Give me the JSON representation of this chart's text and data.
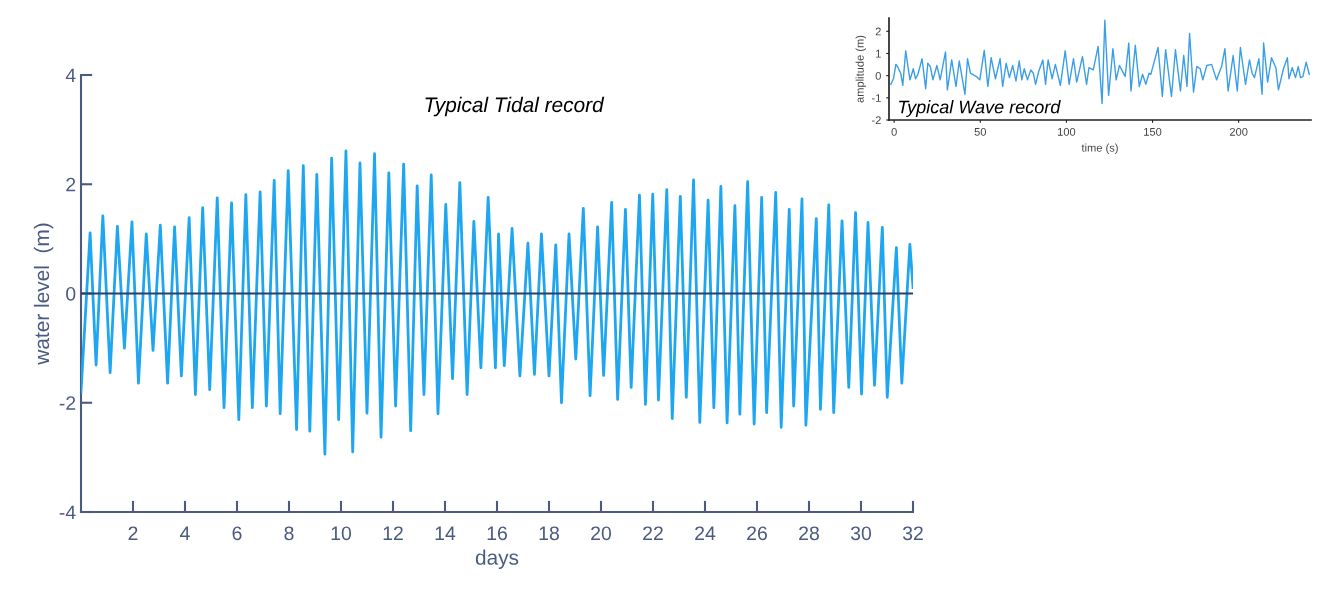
{
  "chart_data": [
    {
      "type": "line",
      "title": "Typical Tidal record",
      "xlabel": "days",
      "ylabel": "water level  (m)",
      "color": "#1ea7f0",
      "x": [
        0,
        0.35,
        0.58,
        0.84,
        1.12,
        1.4,
        1.67,
        1.96,
        2.21,
        2.51,
        2.77,
        3.05,
        3.33,
        3.6,
        3.86,
        4.16,
        4.4,
        4.68,
        4.95,
        5.24,
        5.5,
        5.79,
        6.07,
        6.34,
        6.59,
        6.89,
        7.13,
        7.43,
        7.66,
        7.97,
        8.29,
        8.55,
        8.8,
        9.07,
        9.38,
        9.64,
        9.91,
        10.19,
        10.45,
        10.73,
        11.0,
        11.29,
        11.54,
        11.84,
        12.1,
        12.41,
        12.68,
        12.93,
        13.19,
        13.47,
        13.73,
        14.03,
        14.29,
        14.57,
        14.85,
        15.11,
        15.38,
        15.66,
        15.94,
        16.06,
        16.28,
        16.58,
        16.88,
        17.19,
        17.44,
        17.71,
        18.0,
        18.26,
        18.48,
        18.77,
        19.03,
        19.32,
        19.58,
        19.87,
        20.1,
        20.41,
        20.64,
        20.94,
        21.16,
        21.48,
        21.71,
        21.99,
        22.21,
        22.53,
        22.74,
        23.05,
        23.28,
        23.56,
        23.8,
        24.12,
        24.34,
        24.61,
        24.85,
        25.15,
        25.34,
        25.64,
        25.89,
        26.18,
        26.37,
        26.72,
        26.93,
        27.24,
        27.41,
        27.73,
        27.88,
        28.28,
        28.44,
        28.76,
        28.95,
        29.27,
        29.53,
        29.79,
        30.02,
        30.27,
        30.52,
        30.82,
        31.01,
        31.36,
        31.57,
        31.88,
        32.0
      ],
      "values": [
        -1.8,
        1.11,
        -1.31,
        1.42,
        -1.45,
        1.23,
        -1.0,
        1.31,
        -1.64,
        1.09,
        -1.04,
        1.25,
        -1.64,
        1.22,
        -1.51,
        1.39,
        -1.85,
        1.57,
        -1.76,
        1.75,
        -2.09,
        1.66,
        -2.31,
        1.81,
        -2.09,
        1.86,
        -2.06,
        2.07,
        -2.2,
        2.25,
        -2.49,
        2.34,
        -2.52,
        2.18,
        -2.94,
        2.48,
        -2.31,
        2.61,
        -2.9,
        2.39,
        -2.19,
        2.56,
        -2.63,
        2.21,
        -2.06,
        2.37,
        -2.51,
        1.97,
        -1.85,
        2.17,
        -2.2,
        1.63,
        -1.56,
        2.03,
        -1.85,
        1.32,
        -1.36,
        1.76,
        -1.36,
        1.09,
        -1.32,
        1.19,
        -1.51,
        0.92,
        -1.48,
        1.09,
        -1.51,
        0.89,
        -2.0,
        1.09,
        -1.2,
        1.56,
        -1.87,
        1.22,
        -1.5,
        1.67,
        -1.94,
        1.54,
        -1.72,
        1.8,
        -2.03,
        1.82,
        -1.95,
        1.9,
        -2.29,
        1.78,
        -1.9,
        2.08,
        -2.36,
        1.71,
        -2.09,
        1.96,
        -2.37,
        1.61,
        -2.21,
        2.05,
        -2.39,
        1.76,
        -2.18,
        1.85,
        -2.45,
        1.54,
        -2.06,
        1.73,
        -2.41,
        1.37,
        -2.12,
        1.62,
        -2.18,
        1.33,
        -1.72,
        1.48,
        -1.84,
        1.3,
        -1.68,
        1.21,
        -1.9,
        0.84,
        -1.64,
        0.9,
        0.11
      ],
      "xlim": [
        0,
        32
      ],
      "xticks": [
        2,
        4,
        6,
        8,
        10,
        12,
        14,
        16,
        18,
        20,
        22,
        24,
        26,
        28,
        30,
        32
      ],
      "ylim": [
        -4,
        4
      ],
      "yticks": [
        -4,
        -2,
        0,
        2,
        4
      ],
      "ref_lines": [
        {
          "axis": "y",
          "value": 0,
          "color": "#2b3f6b"
        }
      ]
    },
    {
      "type": "line",
      "xlabel": "time (s)",
      "ylabel": "amplitude (m)",
      "color": "#3a9ee6",
      "annotations": [
        "Typical Wave record"
      ],
      "x": [
        -1.9,
        -0.4,
        1.0,
        2.3,
        3.8,
        5.0,
        6.7,
        8.2,
        9.2,
        11.1,
        12.4,
        13.8,
        16.2,
        18.3,
        19.5,
        21.0,
        22.5,
        24.8,
        26.7,
        29.8,
        30.9,
        33.4,
        35.9,
        37.8,
        41.1,
        42.6,
        44.3,
        47.8,
        49.7,
        52.3,
        54.4,
        56.3,
        58.8,
        61.5,
        63.0,
        65.0,
        66.9,
        68.8,
        70.7,
        72.6,
        74.1,
        75.5,
        77.4,
        79.3,
        80.8,
        82.1,
        84.0,
        86.3,
        87.9,
        89.4,
        91.7,
        93.6,
        96.5,
        99.3,
        101.6,
        104.1,
        106.0,
        109.3,
        111.7,
        113.1,
        115.6,
        118.4,
        120.7,
        122.3,
        124.5,
        127.0,
        128.9,
        130.8,
        132.8,
        134.1,
        136.2,
        137.5,
        140.0,
        142.3,
        144.2,
        146.1,
        148.0,
        149.0,
        153.2,
        155.7,
        157.6,
        161.0,
        163.3,
        166.2,
        168.1,
        170.0,
        171.5,
        173.8,
        175.7,
        177.7,
        179.2,
        181.5,
        184.3,
        187.2,
        190.1,
        192.0,
        193.9,
        196.8,
        199.2,
        201.0,
        204.0,
        206.3,
        207.8,
        209.2,
        211.7,
        213.6,
        214.5,
        216.8,
        219.1,
        221.6,
        223.1,
        226.0,
        228.3,
        229.2,
        231.1,
        233.0,
        234.6,
        235.9,
        237.3,
        239.2,
        241.0
      ],
      "values": [
        -0.39,
        -0.14,
        0.51,
        0.36,
        0.11,
        -0.44,
        1.12,
        0.31,
        -0.19,
        0.31,
        -0.14,
        0.06,
        0.76,
        -0.59,
        0.56,
        0.41,
        -0.19,
        0.46,
        -0.19,
        1.07,
        -0.64,
        0.71,
        -0.49,
        0.66,
        -0.84,
        0.76,
        0.11,
        -0.04,
        -0.19,
        1.14,
        -0.49,
        0.81,
        -0.14,
        0.76,
        -0.49,
        0.56,
        -0.09,
        0.46,
        -0.24,
        0.66,
        -0.19,
        0.31,
        -0.19,
        0.26,
        0.11,
        -0.39,
        0.21,
        0.71,
        -0.39,
        0.71,
        -0.14,
        0.51,
        -0.44,
        1.12,
        -0.39,
        0.76,
        -0.29,
        0.86,
        -0.39,
        0.36,
        0.26,
        1.32,
        -1.25,
        2.5,
        -0.89,
        1.22,
        -0.19,
        0.46,
        0.16,
        -0.04,
        1.47,
        -0.69,
        1.37,
        -0.49,
        0.06,
        -0.39,
        0.11,
        0.06,
        1.27,
        -0.94,
        1.17,
        -0.94,
        1.17,
        -0.69,
        0.91,
        -0.49,
        1.9,
        -0.74,
        0.41,
        0.31,
        -0.19,
        0.46,
        0.51,
        -0.19,
        0.41,
        1.22,
        -0.69,
        0.91,
        -0.69,
        1.27,
        -0.39,
        0.71,
        0.11,
        -0.09,
        0.76,
        -0.84,
        1.47,
        -0.29,
        0.81,
        0.36,
        -0.64,
        0.31,
        0.81,
        -0.14,
        0.36,
        -0.09,
        0.41,
        -0.09,
        -0.04,
        0.61,
        0.06
      ],
      "xlim": [
        -3,
        242
      ],
      "xticks": [
        0,
        50,
        100,
        150,
        200
      ],
      "ylim": [
        -2,
        2.6
      ],
      "yticks": [
        -2,
        -1,
        0,
        1,
        2
      ]
    }
  ]
}
